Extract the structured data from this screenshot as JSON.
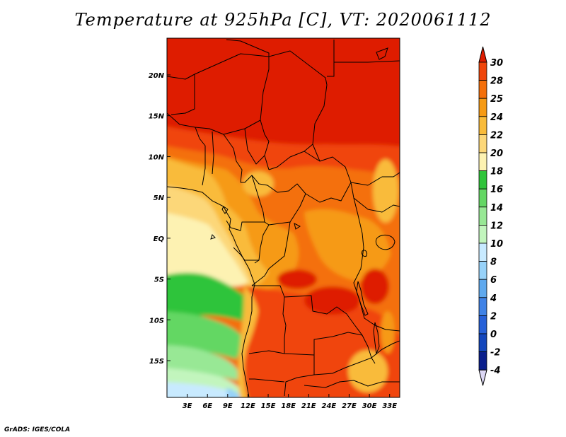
{
  "title": "Temperature at 925hPa [C], VT: 2020061112",
  "credit": "GrADS: IGES/COLA",
  "map": {
    "lon_range": [
      0,
      34.5
    ],
    "lat_range": [
      -19.5,
      24.5
    ],
    "x_ticks": [
      "3E",
      "6E",
      "9E",
      "12E",
      "15E",
      "18E",
      "21E",
      "24E",
      "27E",
      "30E",
      "33E"
    ],
    "x_tick_values": [
      3,
      6,
      9,
      12,
      15,
      18,
      21,
      24,
      27,
      30,
      33
    ],
    "y_ticks": [
      "20N",
      "15N",
      "10N",
      "5N",
      "EQ",
      "5S",
      "10S",
      "15S"
    ],
    "y_tick_values": [
      20,
      15,
      10,
      5,
      0,
      -5,
      -10,
      -15
    ]
  },
  "colorbar": {
    "labels": [
      "30",
      "28",
      "25",
      "24",
      "22",
      "20",
      "18",
      "16",
      "14",
      "12",
      "10",
      "8",
      "6",
      "4",
      "2",
      "0",
      "-2",
      "-4"
    ],
    "colors": [
      "#de1c00",
      "#f0450a",
      "#f46f0a",
      "#f69a14",
      "#f9bb3a",
      "#fcd779",
      "#fdf2b2",
      "#2fc43a",
      "#64d764",
      "#98e895",
      "#c2f5bd",
      "#c8eaff",
      "#97d2f9",
      "#5fa9ee",
      "#3f82e6",
      "#2660d8",
      "#1346bc",
      "#0a1e8c",
      "#0a0a64",
      "#dcd7f5"
    ]
  },
  "legend_levels": [
    {
      "name": "lt-minus4",
      "color": "#dcd7f5"
    },
    {
      "name": "minus4-minus2",
      "color": "#0a1e8c"
    },
    {
      "name": "gt30",
      "color": "#de1c00"
    }
  ]
}
